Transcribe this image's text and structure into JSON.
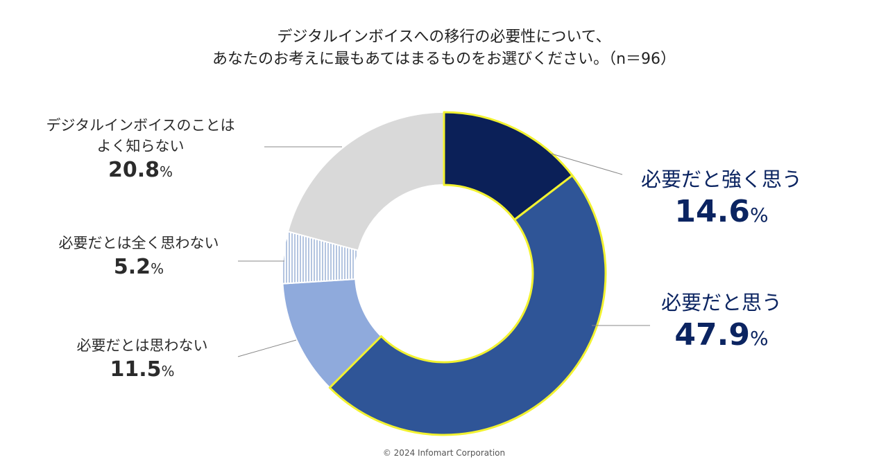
{
  "chart_data": {
    "type": "donut",
    "title_line1": "デジタルインボイスへの移行の必要性について、",
    "title_line2": "あなたのお考えに最もあてはまるものをお選びください。（n＝96）",
    "unit": "%",
    "slices": [
      {
        "label": "必要だと強く思う",
        "value": 14.6,
        "value_text": "14.6",
        "color": "#0b2058",
        "highlight": true
      },
      {
        "label": "必要だと思う",
        "value": 47.9,
        "value_text": "47.9",
        "color": "#2f5597",
        "highlight": true
      },
      {
        "label": "必要だとは思わない",
        "value": 11.5,
        "value_text": "11.5",
        "color": "#8faadc",
        "highlight": false
      },
      {
        "label": "必要だとは全く思わない",
        "value": 5.2,
        "value_text": "5.2",
        "color": "#ffffff",
        "pattern": "vertical-lines",
        "pattern_color": "#6a8bc0",
        "highlight": false
      },
      {
        "label_line1": "デジタルインボイスのことは",
        "label_line2": "よく知らない",
        "value": 20.8,
        "value_text": "20.8",
        "color": "#d9d9d9",
        "highlight": false
      }
    ],
    "highlight_border_color": "#f2f230"
  },
  "footer": {
    "copyright": "© 2024 Infomart Corporation"
  }
}
